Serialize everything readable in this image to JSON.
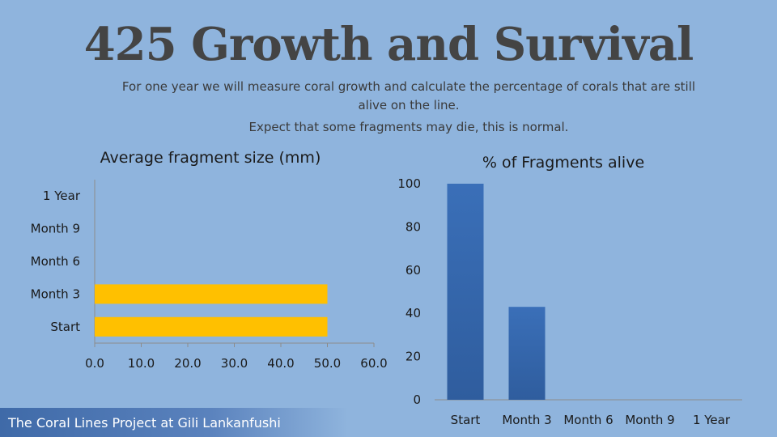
{
  "slide": {
    "title": "425 Growth and Survival",
    "subtitle": "For one year we will measure coral growth and calculate the percentage of corals that are still alive on the line.",
    "note": "Expect that some fragments may die, this is normal.",
    "footer": "The Coral Lines Project at Gili Lankanfushi"
  },
  "colors": {
    "background": "#8fb4dd",
    "size_bar": "#ffc000",
    "alive_bar": "#3a6fb8"
  },
  "chart_data": [
    {
      "type": "bar",
      "orientation": "horizontal",
      "title": "Average fragment size (mm)",
      "categories": [
        "Start",
        "Month 3",
        "Month 6",
        "Month 9",
        "1 Year"
      ],
      "values": [
        50,
        50,
        null,
        null,
        null
      ],
      "xlim": [
        0,
        60
      ],
      "xticks": [
        "0.0",
        "10.0",
        "20.0",
        "30.0",
        "40.0",
        "50.0",
        "60.0"
      ],
      "grid": false,
      "legend": "none"
    },
    {
      "type": "bar",
      "orientation": "vertical",
      "title": "% of Fragments alive",
      "categories": [
        "Start",
        "Month 3",
        "Month 6",
        "Month 9",
        "1 Year"
      ],
      "values": [
        100,
        43,
        null,
        null,
        null
      ],
      "ylim": [
        0,
        100
      ],
      "yticks": [
        "0",
        "20",
        "40",
        "60",
        "80",
        "100"
      ],
      "grid": false,
      "legend": "none"
    }
  ]
}
